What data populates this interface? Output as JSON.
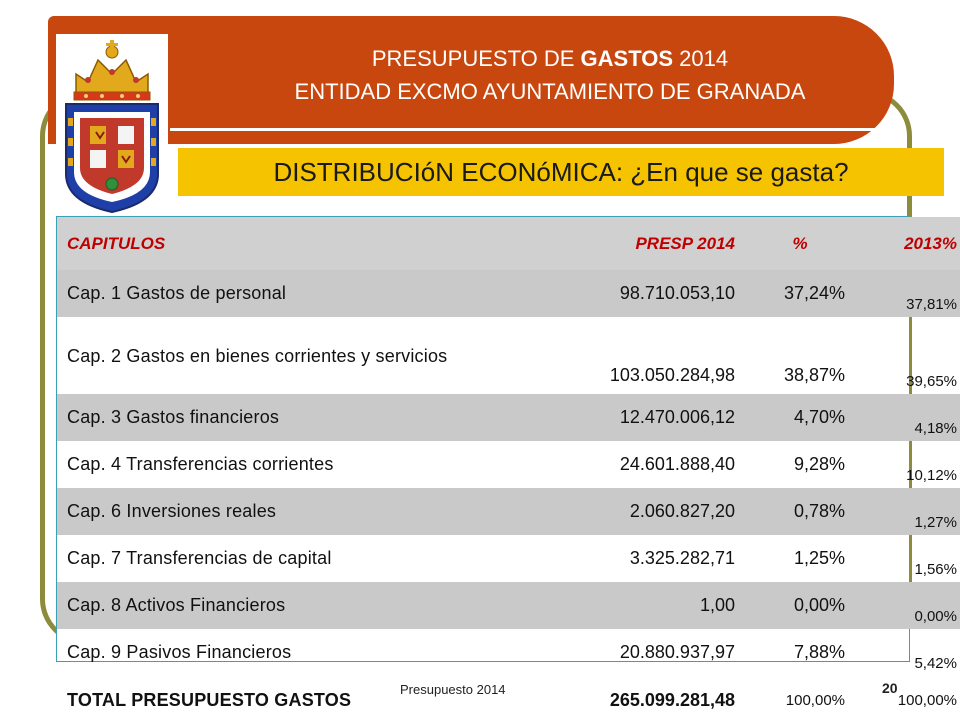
{
  "header": {
    "title_prefix": "PRESUPUESTO DE ",
    "title_bold": "GASTOS",
    "title_suffix": " 2014",
    "entity": "ENTIDAD EXCMO AYUNTAMIENTO DE GRANADA"
  },
  "subtitle": "DISTRIBUCIóN ECONóMICA: ¿En que se gasta?",
  "table": {
    "headers": [
      "CAPITULOS",
      "PRESP 2014",
      "%",
      "2013%"
    ],
    "rows": [
      {
        "name": "Cap. 1 Gastos de personal",
        "presp": "98.710.053,10",
        "pct": "37,24%",
        "pct2013": "37,81%"
      },
      {
        "name": "Cap. 2 Gastos en bienes corrientes y servicios",
        "presp": "103.050.284,98",
        "pct": "38,87%",
        "pct2013": "39,65%"
      },
      {
        "name": "Cap. 3 Gastos financieros",
        "presp": "12.470.006,12",
        "pct": "4,70%",
        "pct2013": "4,18%"
      },
      {
        "name": "Cap. 4 Transferencias corrientes",
        "presp": "24.601.888,40",
        "pct": "9,28%",
        "pct2013": "10,12%"
      },
      {
        "name": "Cap. 6 Inversiones reales",
        "presp": "2.060.827,20",
        "pct": "0,78%",
        "pct2013": "1,27%"
      },
      {
        "name": "Cap. 7 Transferencias de capital",
        "presp": "3.325.282,71",
        "pct": "1,25%",
        "pct2013": "1,56%"
      },
      {
        "name": "Cap. 8 Activos Financieros",
        "presp": "1,00",
        "pct": "0,00%",
        "pct2013": "0,00%"
      },
      {
        "name": "Cap. 9 Pasivos Financieros",
        "presp": "20.880.937,97",
        "pct": "7,88%",
        "pct2013": "5,42%"
      }
    ],
    "total": {
      "name": "TOTAL PRESUPUESTO GASTOS",
      "presp": "265.099.281,48",
      "pct": "100,00%",
      "pct2013": "100,00%"
    }
  },
  "footer": {
    "label": "Presupuesto 2014",
    "page": "20"
  },
  "colors": {
    "header_band": "#c8470e",
    "subtitle_band": "#f5c300",
    "frame": "#8c8c3c",
    "header_text": "#c00000"
  }
}
